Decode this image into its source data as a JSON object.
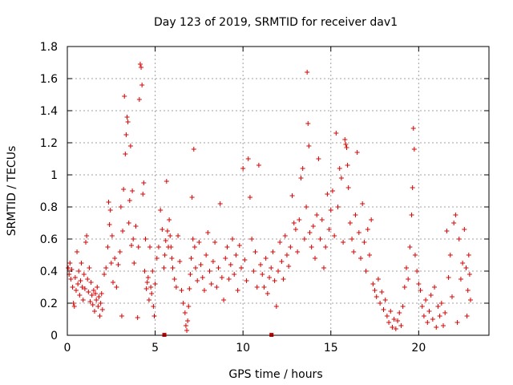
{
  "chart_data": {
    "type": "scatter",
    "title": "Day 123 of 2019, SRMTID for receiver dav1",
    "xlabel": "GPS time / hours",
    "ylabel": "SRMTID / TECUs",
    "xlim": [
      0,
      24
    ],
    "ylim": [
      0,
      1.8
    ],
    "x_ticks": [
      0,
      5,
      10,
      15,
      20
    ],
    "x_tick_labels": [
      "0",
      "5",
      "10",
      "15",
      "20"
    ],
    "y_ticks": [
      0,
      0.2,
      0.4,
      0.6,
      0.8,
      1,
      1.2,
      1.4,
      1.6,
      1.8
    ],
    "y_tick_labels": [
      "0",
      "0.2",
      "0.4",
      "0.6",
      "0.8",
      "1",
      "1.2",
      "1.4",
      "1.6",
      "1.8"
    ],
    "grid": true,
    "marker": "plus",
    "color": "#dd0000",
    "series": [
      {
        "name": "dav1",
        "points": [
          [
            0.05,
            0.42
          ],
          [
            0.1,
            0.38
          ],
          [
            0.15,
            0.45
          ],
          [
            0.2,
            0.35
          ],
          [
            0.25,
            0.41
          ],
          [
            0.3,
            0.3
          ],
          [
            0.35,
            0.2
          ],
          [
            0.4,
            0.18
          ],
          [
            0.45,
            0.36
          ],
          [
            0.5,
            0.28
          ],
          [
            0.55,
            0.52
          ],
          [
            0.6,
            0.32
          ],
          [
            0.65,
            0.4
          ],
          [
            0.7,
            0.25
          ],
          [
            0.75,
            0.34
          ],
          [
            0.8,
            0.45
          ],
          [
            0.85,
            0.3
          ],
          [
            0.9,
            0.22
          ],
          [
            0.95,
            0.38
          ],
          [
            1.0,
            0.29
          ],
          [
            1.05,
            0.58
          ],
          [
            1.1,
            0.62
          ],
          [
            1.15,
            0.35
          ],
          [
            1.2,
            0.27
          ],
          [
            1.25,
            0.42
          ],
          [
            1.3,
            0.21
          ],
          [
            1.35,
            0.33
          ],
          [
            1.4,
            0.25
          ],
          [
            1.45,
            0.19
          ],
          [
            1.5,
            0.28
          ],
          [
            1.55,
            0.15
          ],
          [
            1.6,
            0.26
          ],
          [
            1.65,
            0.22
          ],
          [
            1.7,
            0.3
          ],
          [
            1.75,
            0.18
          ],
          [
            1.8,
            0.24
          ],
          [
            1.85,
            0.12
          ],
          [
            1.9,
            0.2
          ],
          [
            1.95,
            0.26
          ],
          [
            2.0,
            0.16
          ],
          [
            2.1,
            0.38
          ],
          [
            2.2,
            0.42
          ],
          [
            2.3,
            0.55
          ],
          [
            2.35,
            0.83
          ],
          [
            2.4,
            0.69
          ],
          [
            2.45,
            0.78
          ],
          [
            2.5,
            0.45
          ],
          [
            2.55,
            0.62
          ],
          [
            2.6,
            0.33
          ],
          [
            2.7,
            0.48
          ],
          [
            2.8,
            0.3
          ],
          [
            2.9,
            0.44
          ],
          [
            3.0,
            0.52
          ],
          [
            3.05,
            0.8
          ],
          [
            3.1,
            0.12
          ],
          [
            3.15,
            0.65
          ],
          [
            3.2,
            0.91
          ],
          [
            3.25,
            1.49
          ],
          [
            3.3,
            1.13
          ],
          [
            3.35,
            1.25
          ],
          [
            3.4,
            1.36
          ],
          [
            3.45,
            1.33
          ],
          [
            3.5,
            0.7
          ],
          [
            3.55,
            0.84
          ],
          [
            3.6,
            1.18
          ],
          [
            3.65,
            0.56
          ],
          [
            3.7,
            0.9
          ],
          [
            3.75,
            0.6
          ],
          [
            3.8,
            0.45
          ],
          [
            3.9,
            0.68
          ],
          [
            4.0,
            0.11
          ],
          [
            4.05,
            0.55
          ],
          [
            4.1,
            1.47
          ],
          [
            4.15,
            1.69
          ],
          [
            4.2,
            1.67
          ],
          [
            4.25,
            1.56
          ],
          [
            4.3,
            0.88
          ],
          [
            4.35,
            0.95
          ],
          [
            4.4,
            0.4
          ],
          [
            4.45,
            0.6
          ],
          [
            4.5,
            0.29
          ],
          [
            4.55,
            0.33
          ],
          [
            4.6,
            0.36
          ],
          [
            4.65,
            0.22
          ],
          [
            4.7,
            0.55
          ],
          [
            4.75,
            0.3
          ],
          [
            4.8,
            0.26
          ],
          [
            4.85,
            0.4
          ],
          [
            4.9,
            0.18
          ],
          [
            4.95,
            0.12
          ],
          [
            5.0,
            0.32
          ],
          [
            5.1,
            0.48
          ],
          [
            5.2,
            0.55
          ],
          [
            5.3,
            0.78
          ],
          [
            5.4,
            0.66
          ],
          [
            5.5,
            0.42
          ],
          [
            5.55,
            0.5
          ],
          [
            5.6,
            0.59
          ],
          [
            5.65,
            0.96
          ],
          [
            5.7,
            0.65
          ],
          [
            5.75,
            0.55
          ],
          [
            5.8,
            0.72
          ],
          [
            5.85,
            0.62
          ],
          [
            5.9,
            0.55
          ],
          [
            5.95,
            0.48
          ],
          [
            6.0,
            0.42
          ],
          [
            6.1,
            0.35
          ],
          [
            6.2,
            0.3
          ],
          [
            6.3,
            0.62
          ],
          [
            6.4,
            0.46
          ],
          [
            6.5,
            0.28
          ],
          [
            6.6,
            0.2
          ],
          [
            6.7,
            0.14
          ],
          [
            6.75,
            0.06
          ],
          [
            6.8,
            0.03
          ],
          [
            6.85,
            0.09
          ],
          [
            6.9,
            0.18
          ],
          [
            6.95,
            0.29
          ],
          [
            7.0,
            0.38
          ],
          [
            7.05,
            0.48
          ],
          [
            7.1,
            0.86
          ],
          [
            7.15,
            0.6
          ],
          [
            7.2,
            1.16
          ],
          [
            7.25,
            0.55
          ],
          [
            7.3,
            0.42
          ],
          [
            7.4,
            0.34
          ],
          [
            7.5,
            0.58
          ],
          [
            7.6,
            0.44
          ],
          [
            7.7,
            0.36
          ],
          [
            7.8,
            0.28
          ],
          [
            7.9,
            0.5
          ],
          [
            8.0,
            0.64
          ],
          [
            8.1,
            0.4
          ],
          [
            8.2,
            0.32
          ],
          [
            8.3,
            0.46
          ],
          [
            8.4,
            0.58
          ],
          [
            8.5,
            0.3
          ],
          [
            8.6,
            0.42
          ],
          [
            8.7,
            0.82
          ],
          [
            8.8,
            0.36
          ],
          [
            8.9,
            0.22
          ],
          [
            9.0,
            0.48
          ],
          [
            9.1,
            0.55
          ],
          [
            9.2,
            0.35
          ],
          [
            9.3,
            0.44
          ],
          [
            9.4,
            0.6
          ],
          [
            9.5,
            0.38
          ],
          [
            9.6,
            0.5
          ],
          [
            9.7,
            0.28
          ],
          [
            9.8,
            0.56
          ],
          [
            9.9,
            0.42
          ],
          [
            10.0,
            1.04
          ],
          [
            10.1,
            0.47
          ],
          [
            10.2,
            0.34
          ],
          [
            10.3,
            1.1
          ],
          [
            10.4,
            0.86
          ],
          [
            10.5,
            0.6
          ],
          [
            10.6,
            0.4
          ],
          [
            10.7,
            0.52
          ],
          [
            10.8,
            0.3
          ],
          [
            10.9,
            1.06
          ],
          [
            11.0,
            0.44
          ],
          [
            11.1,
            0.38
          ],
          [
            11.2,
            0.3
          ],
          [
            11.3,
            0.48
          ],
          [
            11.4,
            0.26
          ],
          [
            11.5,
            0.36
          ],
          [
            11.6,
            0.42
          ],
          [
            11.7,
            0.52
          ],
          [
            11.8,
            0.34
          ],
          [
            11.9,
            0.18
          ],
          [
            12.0,
            0.4
          ],
          [
            12.1,
            0.58
          ],
          [
            12.2,
            0.46
          ],
          [
            12.3,
            0.35
          ],
          [
            12.4,
            0.62
          ],
          [
            12.5,
            0.5
          ],
          [
            12.6,
            0.43
          ],
          [
            12.7,
            0.55
          ],
          [
            12.8,
            0.87
          ],
          [
            12.9,
            0.7
          ],
          [
            13.0,
            0.66
          ],
          [
            13.1,
            0.52
          ],
          [
            13.2,
            0.72
          ],
          [
            13.3,
            0.98
          ],
          [
            13.4,
            1.04
          ],
          [
            13.5,
            0.6
          ],
          [
            13.6,
            0.8
          ],
          [
            13.65,
            1.64
          ],
          [
            13.7,
            1.32
          ],
          [
            13.75,
            1.18
          ],
          [
            13.8,
            0.64
          ],
          [
            13.9,
            0.55
          ],
          [
            14.0,
            0.68
          ],
          [
            14.1,
            0.48
          ],
          [
            14.2,
            0.75
          ],
          [
            14.3,
            1.1
          ],
          [
            14.4,
            0.6
          ],
          [
            14.5,
            0.72
          ],
          [
            14.6,
            0.42
          ],
          [
            14.7,
            0.55
          ],
          [
            14.8,
            0.88
          ],
          [
            14.9,
            0.66
          ],
          [
            15.0,
            0.78
          ],
          [
            15.1,
            0.9
          ],
          [
            15.2,
            0.62
          ],
          [
            15.3,
            1.26
          ],
          [
            15.4,
            0.8
          ],
          [
            15.5,
            1.04
          ],
          [
            15.6,
            0.98
          ],
          [
            15.7,
            0.58
          ],
          [
            15.8,
            1.22
          ],
          [
            15.85,
            1.19
          ],
          [
            15.9,
            1.17
          ],
          [
            15.95,
            1.06
          ],
          [
            16.0,
            0.92
          ],
          [
            16.1,
            0.7
          ],
          [
            16.2,
            0.6
          ],
          [
            16.3,
            0.52
          ],
          [
            16.4,
            0.75
          ],
          [
            16.5,
            1.14
          ],
          [
            16.6,
            0.64
          ],
          [
            16.7,
            0.48
          ],
          [
            16.8,
            0.82
          ],
          [
            16.9,
            0.58
          ],
          [
            17.0,
            0.4
          ],
          [
            17.1,
            0.66
          ],
          [
            17.2,
            0.5
          ],
          [
            17.3,
            0.72
          ],
          [
            17.4,
            0.32
          ],
          [
            17.5,
            0.28
          ],
          [
            17.6,
            0.24
          ],
          [
            17.7,
            0.35
          ],
          [
            17.8,
            0.2
          ],
          [
            17.9,
            0.27
          ],
          [
            18.0,
            0.16
          ],
          [
            18.1,
            0.22
          ],
          [
            18.2,
            0.12
          ],
          [
            18.3,
            0.08
          ],
          [
            18.4,
            0.15
          ],
          [
            18.5,
            0.05
          ],
          [
            18.6,
            0.1
          ],
          [
            18.7,
            0.04
          ],
          [
            18.8,
            0.09
          ],
          [
            18.9,
            0.14
          ],
          [
            19.0,
            0.06
          ],
          [
            19.1,
            0.18
          ],
          [
            19.2,
            0.3
          ],
          [
            19.3,
            0.42
          ],
          [
            19.4,
            0.35
          ],
          [
            19.5,
            0.55
          ],
          [
            19.6,
            0.75
          ],
          [
            19.65,
            0.92
          ],
          [
            19.7,
            1.29
          ],
          [
            19.75,
            1.16
          ],
          [
            19.8,
            0.5
          ],
          [
            19.9,
            0.4
          ],
          [
            20.0,
            0.32
          ],
          [
            20.1,
            0.28
          ],
          [
            20.2,
            0.18
          ],
          [
            20.3,
            0.12
          ],
          [
            20.4,
            0.22
          ],
          [
            20.5,
            0.08
          ],
          [
            20.6,
            0.15
          ],
          [
            20.7,
            0.25
          ],
          [
            20.8,
            0.1
          ],
          [
            20.9,
            0.3
          ],
          [
            21.0,
            0.05
          ],
          [
            21.1,
            0.18
          ],
          [
            21.2,
            0.12
          ],
          [
            21.3,
            0.2
          ],
          [
            21.4,
            0.06
          ],
          [
            21.5,
            0.14
          ],
          [
            21.6,
            0.65
          ],
          [
            21.7,
            0.36
          ],
          [
            21.8,
            0.5
          ],
          [
            21.9,
            0.24
          ],
          [
            22.0,
            0.7
          ],
          [
            22.1,
            0.75
          ],
          [
            22.2,
            0.08
          ],
          [
            22.3,
            0.6
          ],
          [
            22.4,
            0.35
          ],
          [
            22.5,
            0.45
          ],
          [
            22.6,
            0.66
          ],
          [
            22.7,
            0.42
          ],
          [
            22.75,
            0.12
          ],
          [
            22.8,
            0.28
          ],
          [
            22.85,
            0.5
          ],
          [
            22.9,
            0.38
          ],
          [
            22.95,
            0.22
          ]
        ]
      }
    ],
    "axis_markers": [
      5.5,
      11.6
    ]
  }
}
